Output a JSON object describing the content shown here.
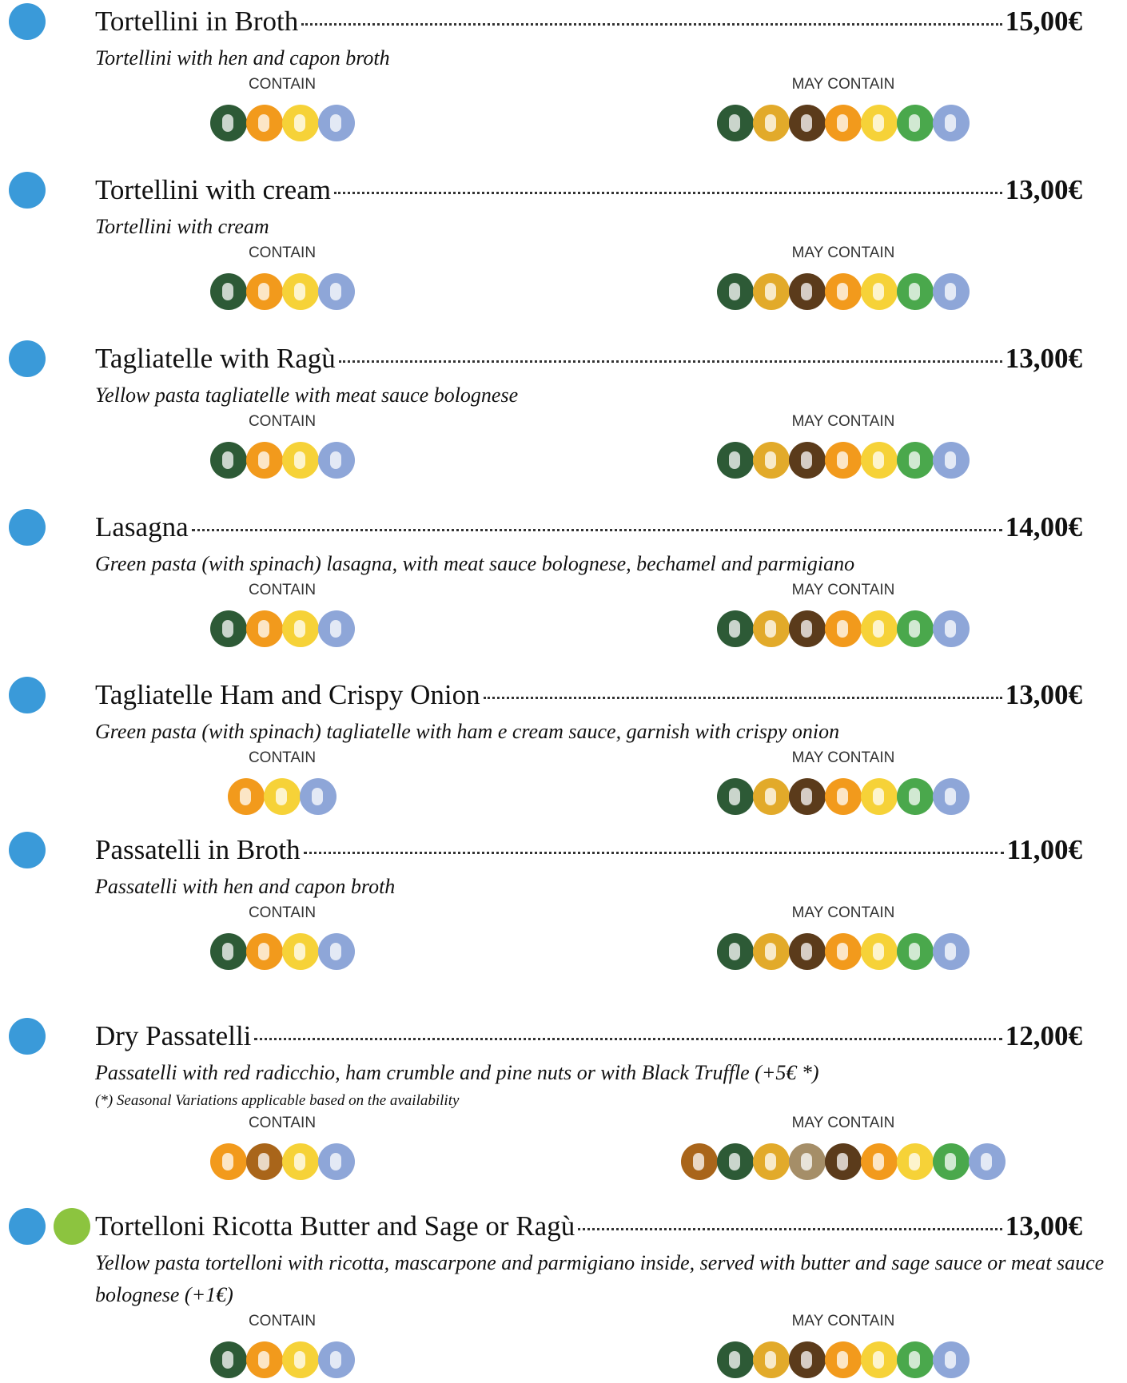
{
  "items": [
    {
      "name": "Tortellini in Broth",
      "price": "15,00€",
      "description": "Tortellini with hen and capon broth",
      "contain": "CONTAIN",
      "may_contain": "MAY CONTAIN"
    },
    {
      "name": "Tortellini with cream",
      "price": "13,00€",
      "description": "Tortellini with cream",
      "contain": "CONTAIN",
      "may_contain": "MAY CONTAIN"
    },
    {
      "name": "Tagliatelle with Ragù",
      "price": "13,00€",
      "description": "Yellow pasta tagliatelle with meat sauce bolognese",
      "contain": "CONTAIN",
      "may_contain": "MAY CONTAIN"
    },
    {
      "name": "Lasagna",
      "price": "14,00€",
      "description": "Green pasta (with spinach) lasagna, with meat sauce bolognese, bechamel and parmigiano",
      "contain": "CONTAIN",
      "may_contain": "MAY CONTAIN"
    },
    {
      "name": "Tagliatelle Ham and Crispy Onion",
      "price": "13,00€",
      "description": "Green pasta (with spinach) tagliatelle with ham e cream sauce, garnish with crispy onion",
      "contain": "CONTAIN",
      "may_contain": "MAY CONTAIN"
    },
    {
      "name": "Passatelli in Broth",
      "price": "11,00€",
      "description": "Passatelli with hen and capon broth",
      "contain": "CONTAIN",
      "may_contain": "MAY CONTAIN"
    },
    {
      "name": "Dry Passatelli",
      "price": "12,00€",
      "description": "Passatelli with red radicchio, ham crumble and pine nuts or with Black Truffle (+5€ *)",
      "note": "(*) Seasonal Variations applicable based on the availability",
      "contain": "CONTAIN",
      "may_contain": "MAY CONTAIN"
    },
    {
      "name": "Tortelloni Ricotta Butter and Sage or Ragù",
      "price": "13,00€",
      "description": "Yellow pasta tortelloni with ricotta, mascarpone and parmigiano inside, served with butter and sage sauce or meat sauce bolognese (+1€)",
      "contain": "CONTAIN",
      "may_contain": "MAY CONTAIN"
    }
  ]
}
